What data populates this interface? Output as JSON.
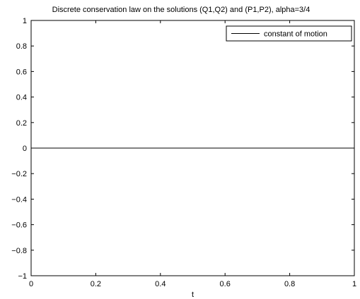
{
  "chart_data": {
    "type": "line",
    "title": "Discrete conservation law on the solutions (Q1,Q2) and (P1,P2), alpha=3/4",
    "xlabel": "t",
    "ylabel": "",
    "xlim": [
      0,
      1
    ],
    "ylim": [
      -1,
      1
    ],
    "x_ticks": [
      0,
      0.2,
      0.4,
      0.6,
      0.8,
      1
    ],
    "x_tick_labels": [
      "0",
      "0.2",
      "0.4",
      "0.6",
      "0.8",
      "1"
    ],
    "y_ticks": [
      -1,
      -0.8,
      -0.6,
      -0.4,
      -0.2,
      0,
      0.2,
      0.4,
      0.6,
      0.8,
      1
    ],
    "y_tick_labels": [
      "−1",
      "−0.8",
      "−0.6",
      "−0.4",
      "−0.2",
      "0",
      "0.2",
      "0.4",
      "0.6",
      "0.8",
      "1"
    ],
    "grid": false,
    "legend_position": "top-right",
    "series": [
      {
        "name": "constant of motion",
        "color": "#000000",
        "x": [
          0,
          1
        ],
        "y": [
          0,
          0
        ]
      }
    ]
  }
}
